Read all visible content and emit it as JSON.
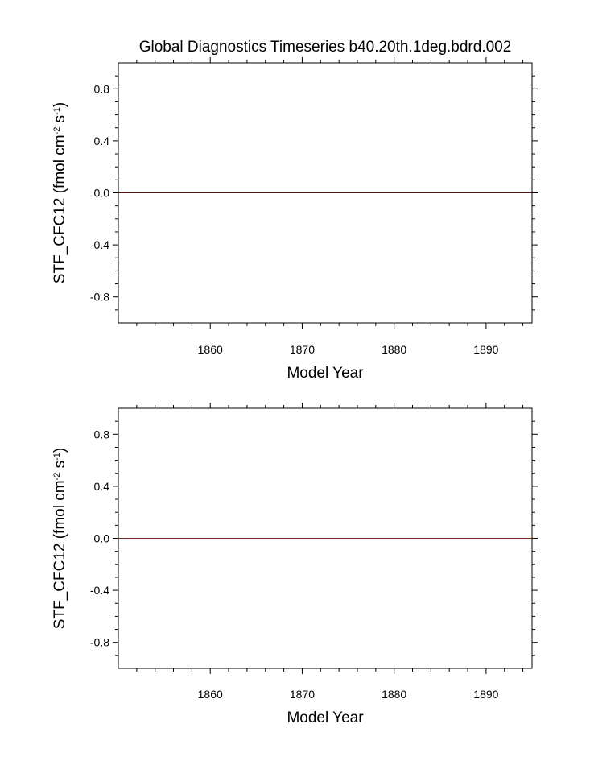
{
  "chart_data": [
    {
      "type": "line",
      "title": "Global Diagnostics Timeseries b40.20th.1deg.bdrd.002",
      "xlabel": "Model Year",
      "ylabel": "STF_CFC12 (fmol cm",
      "ylabel_sup1": "-2",
      "ylabel_mid": " s",
      "ylabel_sup2": "-1",
      "ylabel_end": ")",
      "xlim": [
        1850,
        1895
      ],
      "ylim": [
        -1.0,
        1.0
      ],
      "x_ticks": [
        1860,
        1870,
        1880,
        1890
      ],
      "x_tick_labels": [
        "1860",
        "1870",
        "1880",
        "1890"
      ],
      "y_ticks": [
        0.8,
        0.4,
        0.0,
        -0.4,
        -0.8
      ],
      "y_tick_labels": [
        "0.8",
        "0.4",
        "0.0",
        "-0.4",
        "-0.8"
      ],
      "grid": false,
      "series": [
        {
          "color": "#5a1010",
          "x": [
            1850,
            1895
          ],
          "y": [
            0.0,
            0.0
          ]
        }
      ]
    },
    {
      "type": "line",
      "title": "",
      "xlabel": "Model Year",
      "ylabel": "STF_CFC12 (fmol cm",
      "ylabel_sup1": "-2",
      "ylabel_mid": " s",
      "ylabel_sup2": "-1",
      "ylabel_end": ")",
      "xlim": [
        1850,
        1895
      ],
      "ylim": [
        -1.0,
        1.0
      ],
      "x_ticks": [
        1860,
        1870,
        1880,
        1890
      ],
      "x_tick_labels": [
        "1860",
        "1870",
        "1880",
        "1890"
      ],
      "y_ticks": [
        0.8,
        0.4,
        0.0,
        -0.4,
        -0.8
      ],
      "y_tick_labels": [
        "0.8",
        "0.4",
        "0.0",
        "-0.4",
        "-0.8"
      ],
      "grid": false,
      "series": [
        {
          "color": "#7a2a18",
          "x": [
            1850,
            1895
          ],
          "y": [
            0.0,
            0.0
          ]
        }
      ]
    }
  ]
}
